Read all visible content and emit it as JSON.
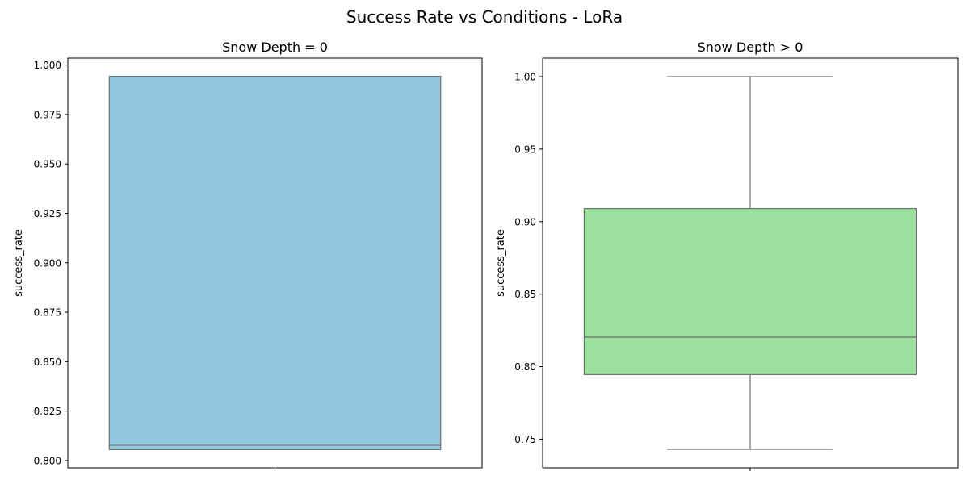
{
  "figure": {
    "title": "Success Rate vs Conditions - LoRa"
  },
  "chart_data": [
    {
      "type": "box",
      "title": "Snow Depth = 0",
      "xlabel": "",
      "ylabel": "success_rate",
      "ylim": [
        0.7963,
        1.0035
      ],
      "yticks": [
        "0.800",
        "0.825",
        "0.850",
        "0.875",
        "0.900",
        "0.925",
        "0.950",
        "0.975",
        "1.000"
      ],
      "color": "#92c8df",
      "box": {
        "whisker_low": 0.8055,
        "q1": 0.8055,
        "median": 0.8077,
        "q3": 0.9943,
        "whisker_high": 0.9943
      },
      "grid": false
    },
    {
      "type": "box",
      "title": "Snow Depth > 0",
      "xlabel": "",
      "ylabel": "success_rate",
      "ylim": [
        0.7302,
        1.0128
      ],
      "yticks": [
        "0.75",
        "0.80",
        "0.85",
        "0.90",
        "0.95",
        "1.00"
      ],
      "color": "#9ce29e",
      "box": {
        "whisker_low": 0.743,
        "q1": 0.7945,
        "median": 0.8203,
        "q3": 0.909,
        "whisker_high": 1.0
      },
      "grid": false
    }
  ]
}
